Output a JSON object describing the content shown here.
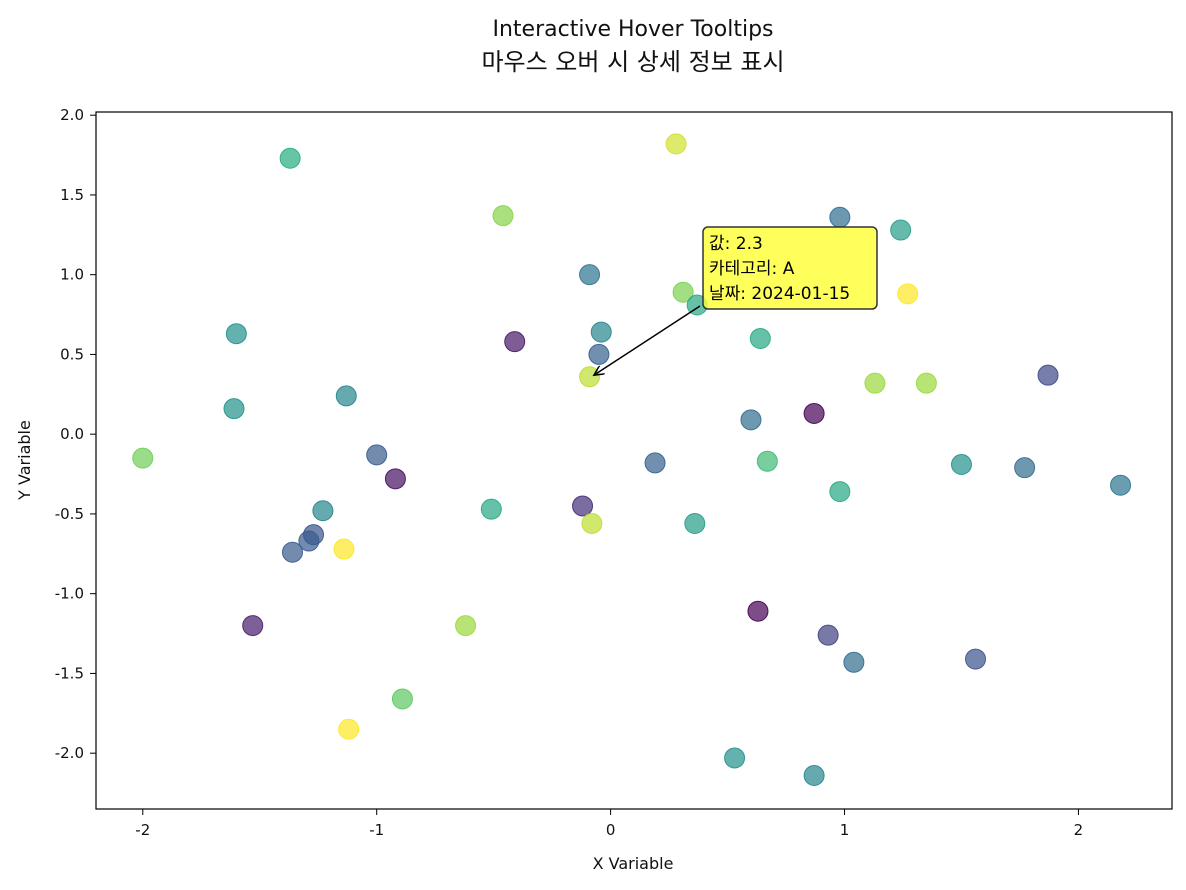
{
  "chart_data": {
    "type": "scatter",
    "title": "Interactive Hover Tooltips",
    "subtitle": "마우스 오버 시 상세 정보 표시",
    "xlabel": "X Variable",
    "ylabel": "Y Variable",
    "xlim": [
      -2.2,
      2.4
    ],
    "ylim": [
      -2.35,
      2.02
    ],
    "x_ticks": [
      -2,
      -1,
      0,
      1,
      2
    ],
    "x_tick_labels": [
      "-2",
      "-1",
      "0",
      "1",
      "2"
    ],
    "y_ticks": [
      2.0,
      1.5,
      1.0,
      0.5,
      0.0,
      -0.5,
      -1.0,
      -1.5,
      -2.0
    ],
    "y_tick_labels": [
      "2.0",
      "1.5",
      "1.0",
      "0.5",
      "0.0",
      "-0.5",
      "-1.0",
      "-1.5",
      "-2.0"
    ],
    "grid": false,
    "colormap": "viridis",
    "marker_alpha": 0.7,
    "points": [
      {
        "x": 0.28,
        "y": 1.82,
        "c": 0.93
      },
      {
        "x": -1.37,
        "y": 1.73,
        "c": 0.62
      },
      {
        "x": -0.46,
        "y": 1.37,
        "c": 0.82
      },
      {
        "x": 0.98,
        "y": 1.36,
        "c": 0.36
      },
      {
        "x": 1.24,
        "y": 1.28,
        "c": 0.55
      },
      {
        "x": -0.09,
        "y": 1.0,
        "c": 0.38
      },
      {
        "x": 0.31,
        "y": 0.89,
        "c": 0.8
      },
      {
        "x": 1.27,
        "y": 0.88,
        "c": 1.0
      },
      {
        "x": 0.37,
        "y": 0.81,
        "c": 0.6
      },
      {
        "x": -0.04,
        "y": 0.64,
        "c": 0.45
      },
      {
        "x": -1.6,
        "y": 0.63,
        "c": 0.5
      },
      {
        "x": 0.64,
        "y": 0.6,
        "c": 0.6
      },
      {
        "x": -0.41,
        "y": 0.58,
        "c": 0.08
      },
      {
        "x": -0.05,
        "y": 0.5,
        "c": 0.3
      },
      {
        "x": -0.09,
        "y": 0.36,
        "c": 0.9
      },
      {
        "x": 1.87,
        "y": 0.37,
        "c": 0.22
      },
      {
        "x": 1.35,
        "y": 0.32,
        "c": 0.85
      },
      {
        "x": 1.13,
        "y": 0.32,
        "c": 0.85
      },
      {
        "x": -1.13,
        "y": 0.24,
        "c": 0.45
      },
      {
        "x": -1.61,
        "y": 0.16,
        "c": 0.5
      },
      {
        "x": 0.87,
        "y": 0.13,
        "c": 0.0
      },
      {
        "x": 0.6,
        "y": 0.09,
        "c": 0.35
      },
      {
        "x": -2.0,
        "y": -0.15,
        "c": 0.78
      },
      {
        "x": -1.0,
        "y": -0.13,
        "c": 0.28
      },
      {
        "x": 0.19,
        "y": -0.18,
        "c": 0.3
      },
      {
        "x": 0.67,
        "y": -0.17,
        "c": 0.68
      },
      {
        "x": 1.5,
        "y": -0.19,
        "c": 0.5
      },
      {
        "x": 1.77,
        "y": -0.21,
        "c": 0.35
      },
      {
        "x": -0.92,
        "y": -0.28,
        "c": 0.05
      },
      {
        "x": 2.18,
        "y": -0.32,
        "c": 0.38
      },
      {
        "x": 0.98,
        "y": -0.36,
        "c": 0.6
      },
      {
        "x": -0.12,
        "y": -0.45,
        "c": 0.15
      },
      {
        "x": -0.51,
        "y": -0.47,
        "c": 0.6
      },
      {
        "x": -1.23,
        "y": -0.48,
        "c": 0.45
      },
      {
        "x": -0.08,
        "y": -0.56,
        "c": 0.9
      },
      {
        "x": 0.36,
        "y": -0.56,
        "c": 0.55
      },
      {
        "x": -1.27,
        "y": -0.63,
        "c": 0.25
      },
      {
        "x": -1.29,
        "y": -0.67,
        "c": 0.28
      },
      {
        "x": -1.14,
        "y": -0.72,
        "c": 1.0
      },
      {
        "x": -1.36,
        "y": -0.74,
        "c": 0.28
      },
      {
        "x": 0.63,
        "y": -1.11,
        "c": 0.0
      },
      {
        "x": -1.53,
        "y": -1.2,
        "c": 0.1
      },
      {
        "x": -0.62,
        "y": -1.2,
        "c": 0.85
      },
      {
        "x": 0.93,
        "y": -1.26,
        "c": 0.2
      },
      {
        "x": 1.04,
        "y": -1.43,
        "c": 0.35
      },
      {
        "x": 1.56,
        "y": -1.41,
        "c": 0.25
      },
      {
        "x": -0.89,
        "y": -1.66,
        "c": 0.75
      },
      {
        "x": -1.12,
        "y": -1.85,
        "c": 1.0
      },
      {
        "x": 0.53,
        "y": -2.03,
        "c": 0.5
      },
      {
        "x": 0.87,
        "y": -2.14,
        "c": 0.45
      }
    ],
    "annotation": {
      "lines": [
        "값: 2.3",
        "카테고리: A",
        "날짜: 2024-01-15"
      ],
      "target": {
        "x": -0.08,
        "y": 0.37
      },
      "anchor": {
        "x": 0.42,
        "y": 1.02
      },
      "box_color": "#ffff33",
      "border_color": "#333333"
    }
  }
}
